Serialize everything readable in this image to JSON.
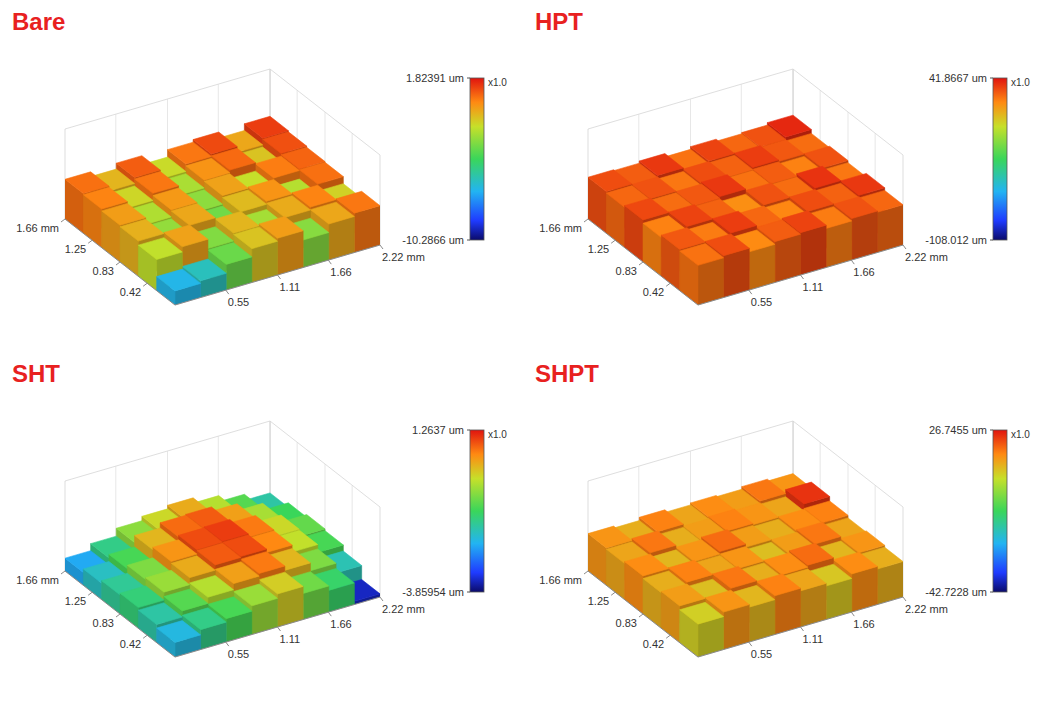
{
  "chart_data": [
    {
      "type": "surface",
      "title": "Bare",
      "grid": true,
      "xlim": [
        0,
        2.22
      ],
      "ylim": [
        0,
        1.66
      ],
      "xticks": [
        0.55,
        1.11,
        1.66,
        {
          "value": 2.22,
          "label": "2.22 mm"
        }
      ],
      "yticks": [
        0.42,
        0.83,
        1.25,
        {
          "value": 1.66,
          "label": "1.66 mm"
        }
      ],
      "colorbar": {
        "range": [
          -10.2866,
          1.82391
        ],
        "ticks": [
          {
            "value": 1.82391,
            "label": "1.82391 um"
          },
          {
            "value": -10.2866,
            "label": "-10.2866 um"
          }
        ],
        "scale_label": "x1.0"
      },
      "cells": [
        [
          -6.5,
          -5.8,
          -3.4,
          -1.2,
          -0.4,
          -2.9,
          -0.6,
          0.3
        ],
        [
          -1.9,
          -0.5,
          -3.0,
          -0.9,
          -2.4,
          -0.7,
          0.1,
          -1.5
        ],
        [
          -0.8,
          -2.7,
          -0.6,
          -3.3,
          -1.0,
          -0.2,
          -2.1,
          0.4
        ],
        [
          -0.4,
          -2.2,
          -0.3,
          -2.8,
          -0.5,
          -1.8,
          0.2,
          0.6
        ],
        [
          0.1,
          -1.6,
          0.3,
          -2.3,
          -0.2,
          0.5,
          -1.2,
          0.9
        ],
        [
          0.4,
          -0.9,
          0.7,
          -1.7,
          0.3,
          1.0,
          -0.6,
          1.2
        ]
      ]
    },
    {
      "type": "surface",
      "title": "HPT",
      "grid": true,
      "xlim": [
        0,
        2.22
      ],
      "ylim": [
        0,
        1.66
      ],
      "xticks": [
        0.55,
        1.11,
        1.66,
        {
          "value": 2.22,
          "label": "2.22 mm"
        }
      ],
      "yticks": [
        0.42,
        0.83,
        1.25,
        {
          "value": 1.66,
          "label": "1.66 mm"
        }
      ],
      "colorbar": {
        "range": [
          -108.012,
          41.8667
        ],
        "ticks": [
          {
            "value": 41.8667,
            "label": "41.8667 um"
          },
          {
            "value": -108.012,
            "label": "-108.012 um"
          }
        ],
        "scale_label": "x1.0"
      },
      "cells": [
        [
          24,
          31,
          19,
          28,
          33,
          22,
          30,
          26
        ],
        [
          29,
          22,
          34,
          26,
          20,
          31,
          27,
          35
        ],
        [
          21,
          33,
          27,
          18,
          30,
          25,
          36,
          23
        ],
        [
          32,
          25,
          29,
          35,
          24,
          28,
          21,
          30
        ],
        [
          26,
          30,
          23,
          31,
          27,
          34,
          29,
          25
        ],
        [
          31,
          28,
          35,
          24,
          33,
          26,
          30,
          38
        ]
      ]
    },
    {
      "type": "surface",
      "title": "SHT",
      "grid": true,
      "xlim": [
        0,
        2.22
      ],
      "ylim": [
        0,
        1.66
      ],
      "xticks": [
        0.55,
        1.11,
        1.66,
        {
          "value": 2.22,
          "label": "2.22 mm"
        }
      ],
      "yticks": [
        0.42,
        0.83,
        1.25,
        {
          "value": 1.66,
          "label": "1.66 mm"
        }
      ],
      "colorbar": {
        "range": [
          -3.85954,
          1.2637
        ],
        "ticks": [
          {
            "value": 1.2637,
            "label": "1.2637 um"
          },
          {
            "value": -3.85954,
            "label": "-3.85954 um"
          }
        ],
        "scale_label": "x1.0"
      },
      "cells": [
        [
          -2.2,
          -1.6,
          -1.2,
          -0.6,
          -0.1,
          -0.9,
          -1.4,
          -3.5
        ],
        [
          -1.8,
          -1.1,
          -0.4,
          0.3,
          0.6,
          0.1,
          -0.8,
          -1.9
        ],
        [
          -1.5,
          -0.6,
          0.2,
          0.8,
          0.9,
          0.5,
          -0.3,
          -1.2
        ],
        [
          -1.7,
          -0.8,
          0.4,
          0.9,
          1.0,
          0.6,
          -0.2,
          -1.0
        ],
        [
          -2.0,
          -1.2,
          0.1,
          0.7,
          0.8,
          0.3,
          -0.5,
          -1.3
        ],
        [
          -2.4,
          -1.6,
          -0.7,
          -0.2,
          0.2,
          -0.4,
          -1.1,
          -1.8
        ]
      ]
    },
    {
      "type": "surface",
      "title": "SHPT",
      "grid": true,
      "xlim": [
        0,
        2.22
      ],
      "ylim": [
        0,
        1.66
      ],
      "xticks": [
        0.55,
        1.11,
        1.66,
        {
          "value": 2.22,
          "label": "2.22 mm"
        }
      ],
      "yticks": [
        0.42,
        0.83,
        1.25,
        {
          "value": 1.66,
          "label": "1.66 mm"
        }
      ],
      "colorbar": {
        "range": [
          -42.7228,
          26.7455
        ],
        "ticks": [
          {
            "value": 26.7455,
            "label": "26.7455 um"
          },
          {
            "value": -42.7228,
            "label": "-42.7228 um"
          }
        ],
        "scale_label": "x1.0"
      },
      "cells": [
        [
          8,
          15,
          11,
          17,
          13,
          9,
          16,
          12
        ],
        [
          14,
          10,
          18,
          12,
          16,
          19,
          11,
          15
        ],
        [
          12,
          17,
          13,
          15,
          10,
          14,
          18,
          13
        ],
        [
          16,
          11,
          15,
          19,
          14,
          12,
          16,
          17
        ],
        [
          13,
          18,
          12,
          14,
          17,
          15,
          13,
          24
        ],
        [
          15,
          12,
          17,
          13,
          16,
          14,
          18,
          15
        ]
      ]
    }
  ]
}
